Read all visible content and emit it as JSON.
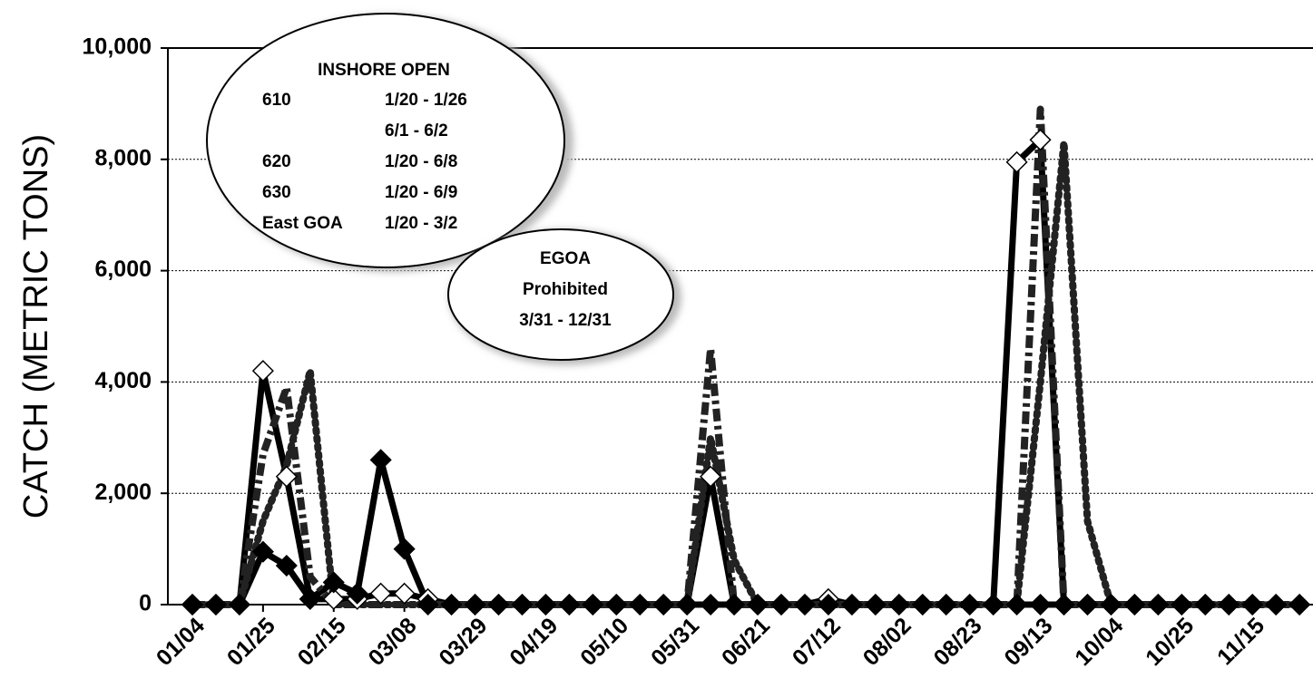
{
  "chart_data": {
    "type": "line",
    "y_label": "CATCH (METRIC TONS)",
    "categories": [
      "01/04",
      null,
      null,
      "01/25",
      null,
      null,
      "02/15",
      null,
      null,
      "03/08",
      null,
      null,
      "03/29",
      null,
      null,
      "04/19",
      null,
      null,
      "05/10",
      null,
      null,
      "05/31",
      null,
      null,
      "06/21",
      null,
      null,
      "07/12",
      null,
      null,
      "08/02",
      null,
      null,
      "08/23",
      null,
      null,
      "09/13",
      null,
      null,
      "10/04",
      null,
      null,
      "10/25",
      null,
      null,
      "11/15",
      null,
      null
    ],
    "ylim": [
      0,
      10000
    ],
    "yticks": [
      {
        "value": 0,
        "label": "0"
      },
      {
        "value": 2000,
        "label": "2,000"
      },
      {
        "value": 4000,
        "label": "4,000"
      },
      {
        "value": 6000,
        "label": "6,000"
      },
      {
        "value": 8000,
        "label": "8,000"
      },
      {
        "value": 10000,
        "label": "10,000"
      }
    ],
    "grid": true,
    "series": [
      {
        "color": "#000",
        "line_style": "solid",
        "marker": "open-diamond",
        "values": [
          0,
          0,
          0,
          4200,
          2300,
          100,
          100,
          100,
          200,
          200,
          100,
          0,
          0,
          0,
          0,
          0,
          0,
          0,
          0,
          0,
          0,
          0,
          2300,
          0,
          0,
          0,
          0,
          100,
          0,
          0,
          0,
          0,
          0,
          0,
          0,
          7950,
          8350,
          0,
          0,
          0,
          0,
          0,
          0,
          0,
          0,
          0,
          0,
          0
        ]
      },
      {
        "color": "#000",
        "line_style": "solid",
        "marker": "diamond",
        "values": [
          0,
          0,
          0,
          950,
          700,
          100,
          400,
          200,
          2600,
          1000,
          0,
          0,
          0,
          0,
          0,
          0,
          0,
          0,
          0,
          0,
          0,
          0,
          0,
          0,
          0,
          0,
          0,
          0,
          0,
          0,
          0,
          0,
          0,
          0,
          0,
          0,
          0,
          0,
          0,
          0,
          0,
          0,
          0,
          0,
          0,
          0,
          0,
          0
        ]
      },
      {
        "color": "#222",
        "line_style": "dashdot",
        "marker": "none",
        "values": [
          0,
          0,
          0,
          2700,
          3900,
          500,
          0,
          0,
          0,
          0,
          0,
          0,
          0,
          0,
          0,
          0,
          0,
          0,
          0,
          0,
          0,
          0,
          4600,
          0,
          0,
          0,
          0,
          0,
          0,
          0,
          0,
          0,
          0,
          0,
          0,
          0,
          8900,
          0,
          0,
          0,
          0,
          0,
          0,
          0,
          0,
          0,
          0,
          0
        ]
      },
      {
        "color": "#222",
        "line_style": "dotted",
        "marker": "none",
        "values": [
          0,
          0,
          0,
          1500,
          2500,
          4200,
          0,
          0,
          0,
          0,
          0,
          0,
          0,
          0,
          0,
          0,
          0,
          0,
          0,
          0,
          0,
          0,
          3000,
          800,
          0,
          0,
          0,
          0,
          0,
          0,
          0,
          0,
          0,
          0,
          0,
          0,
          4000,
          8300,
          1500,
          0,
          0,
          0,
          0,
          0,
          0,
          0,
          0,
          0
        ]
      }
    ],
    "annotations": [
      {
        "title": "INSHORE OPEN",
        "rows": [
          [
            "610",
            "1/20 - 1/26"
          ],
          [
            "",
            "6/1  -  6/2"
          ],
          [
            "620",
            "1/20 -  6/8"
          ],
          [
            "630",
            "1/20 -  6/9"
          ],
          [
            "East GOA",
            "1/20 -  3/2"
          ]
        ]
      },
      {
        "lines": [
          "EGOA",
          "Prohibited",
          "3/31  -  12/31"
        ]
      }
    ]
  }
}
